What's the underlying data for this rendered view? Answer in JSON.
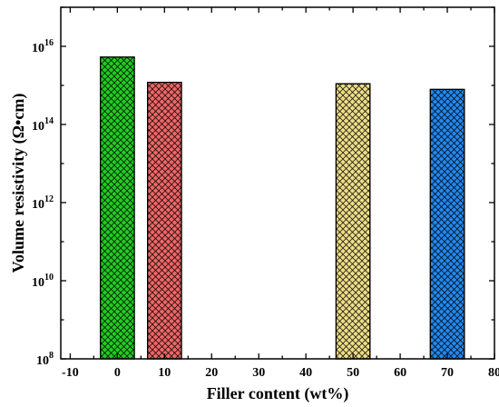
{
  "chart_data": {
    "type": "bar",
    "title": "",
    "xlabel": "Filler content (wt%)",
    "ylabel": "Volume resistivity (Ω•cm)",
    "x": [
      0,
      10,
      50,
      70
    ],
    "values": [
      5300000000000000.0,
      1200000000000000.0,
      1100000000000000.0,
      790000000000000.0
    ],
    "bar_colors": [
      "#22cc22",
      "#ee6666",
      "#eedd88",
      "#2288ee"
    ],
    "pattern": "crosshatch",
    "xlim": [
      -12,
      80
    ],
    "ylim": [
      100000000.0,
      1e+17
    ],
    "yscale": "log",
    "xticks": [
      -10,
      0,
      10,
      20,
      30,
      40,
      50,
      60,
      70,
      80
    ],
    "xtick_labels": [
      "-10",
      "0",
      "10",
      "20",
      "30",
      "40",
      "50",
      "60",
      "70",
      "80"
    ],
    "yticks": [
      {
        "base": "10",
        "exp": "8",
        "value": 100000000.0
      },
      {
        "base": "10",
        "exp": "10",
        "value": 10000000000.0
      },
      {
        "base": "10",
        "exp": "12",
        "value": 1000000000000.0
      },
      {
        "base": "10",
        "exp": "14",
        "value": 100000000000000.0
      },
      {
        "base": "10",
        "exp": "16",
        "value": 1e+16
      }
    ],
    "grid": false,
    "legend": "none"
  }
}
